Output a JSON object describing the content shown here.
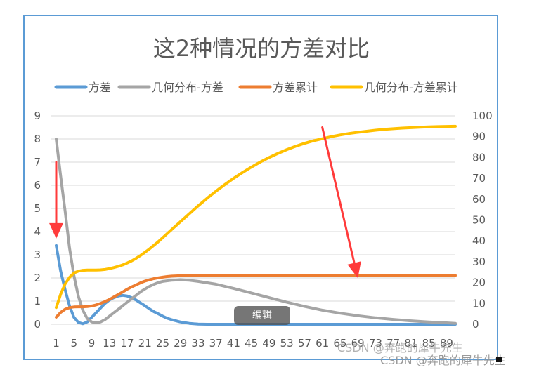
{
  "chart_data": {
    "type": "line",
    "title": "这2种情况的方差对比",
    "x_start": 1,
    "x_end": 91,
    "x_ticks": [
      1,
      5,
      9,
      13,
      17,
      21,
      25,
      29,
      33,
      37,
      41,
      45,
      49,
      53,
      57,
      61,
      65,
      69,
      73,
      77,
      81,
      85,
      89
    ],
    "y_left": {
      "min": 0,
      "max": 9,
      "ticks": [
        0,
        1,
        2,
        3,
        4,
        5,
        6,
        7,
        8,
        9
      ]
    },
    "y_right": {
      "min": 0,
      "max": 100,
      "ticks": [
        0,
        10,
        20,
        30,
        40,
        50,
        60,
        70,
        80,
        90,
        100
      ]
    },
    "grid": true,
    "legend_position": "top",
    "series": [
      {
        "name": "方差",
        "color": "#5b9bd5",
        "axis": "left",
        "points": [
          [
            1,
            3.4
          ],
          [
            2,
            2.3
          ],
          [
            3,
            1.5
          ],
          [
            4,
            0.8
          ],
          [
            5,
            0.3
          ],
          [
            6,
            0.08
          ],
          [
            7,
            0.02
          ],
          [
            8,
            0.1
          ],
          [
            9,
            0.3
          ],
          [
            10,
            0.5
          ],
          [
            11,
            0.7
          ],
          [
            12,
            0.9
          ],
          [
            13,
            1.05
          ],
          [
            14,
            1.15
          ],
          [
            15,
            1.22
          ],
          [
            16,
            1.25
          ],
          [
            17,
            1.22
          ],
          [
            18,
            1.15
          ],
          [
            19,
            1.05
          ],
          [
            20,
            0.92
          ],
          [
            21,
            0.8
          ],
          [
            22,
            0.67
          ],
          [
            23,
            0.55
          ],
          [
            24,
            0.45
          ],
          [
            25,
            0.35
          ],
          [
            26,
            0.26
          ],
          [
            27,
            0.2
          ],
          [
            28,
            0.15
          ],
          [
            29,
            0.1
          ],
          [
            30,
            0.07
          ],
          [
            31,
            0.04
          ],
          [
            32,
            0.02
          ],
          [
            33,
            0.01
          ],
          [
            35,
            0
          ],
          [
            91,
            0
          ]
        ]
      },
      {
        "name": "几何分布-方差",
        "color": "#a5a5a5",
        "axis": "left",
        "points": [
          [
            1,
            8.0
          ],
          [
            2,
            6.4
          ],
          [
            3,
            4.9
          ],
          [
            4,
            3.3
          ],
          [
            5,
            2.1
          ],
          [
            6,
            1.2
          ],
          [
            7,
            0.6
          ],
          [
            8,
            0.25
          ],
          [
            9,
            0.1
          ],
          [
            10,
            0.06
          ],
          [
            11,
            0.1
          ],
          [
            12,
            0.2
          ],
          [
            13,
            0.35
          ],
          [
            14,
            0.5
          ],
          [
            15,
            0.65
          ],
          [
            16,
            0.8
          ],
          [
            17,
            0.95
          ],
          [
            18,
            1.1
          ],
          [
            19,
            1.25
          ],
          [
            20,
            1.4
          ],
          [
            21,
            1.52
          ],
          [
            22,
            1.63
          ],
          [
            23,
            1.72
          ],
          [
            24,
            1.8
          ],
          [
            25,
            1.85
          ],
          [
            27,
            1.9
          ],
          [
            29,
            1.92
          ],
          [
            31,
            1.9
          ],
          [
            33,
            1.85
          ],
          [
            37,
            1.73
          ],
          [
            41,
            1.55
          ],
          [
            45,
            1.35
          ],
          [
            49,
            1.15
          ],
          [
            53,
            0.95
          ],
          [
            57,
            0.77
          ],
          [
            61,
            0.61
          ],
          [
            65,
            0.48
          ],
          [
            69,
            0.37
          ],
          [
            73,
            0.28
          ],
          [
            77,
            0.21
          ],
          [
            81,
            0.15
          ],
          [
            85,
            0.1
          ],
          [
            89,
            0.06
          ],
          [
            91,
            0.04
          ]
        ]
      },
      {
        "name": "方差累计",
        "color": "#ed7d31",
        "axis": "right",
        "points": [
          [
            1,
            3.4
          ],
          [
            2,
            5.7
          ],
          [
            3,
            7.2
          ],
          [
            4,
            8.0
          ],
          [
            5,
            8.3
          ],
          [
            6,
            8.4
          ],
          [
            7,
            8.4
          ],
          [
            8,
            8.5
          ],
          [
            9,
            8.8
          ],
          [
            10,
            9.3
          ],
          [
            11,
            10.0
          ],
          [
            12,
            10.9
          ],
          [
            13,
            11.9
          ],
          [
            14,
            13.1
          ],
          [
            15,
            14.3
          ],
          [
            16,
            15.5
          ],
          [
            17,
            16.8
          ],
          [
            18,
            17.9
          ],
          [
            19,
            18.9
          ],
          [
            20,
            19.9
          ],
          [
            21,
            20.7
          ],
          [
            22,
            21.3
          ],
          [
            23,
            21.9
          ],
          [
            24,
            22.3
          ],
          [
            25,
            22.6
          ],
          [
            26,
            22.9
          ],
          [
            27,
            23.1
          ],
          [
            28,
            23.2
          ],
          [
            29,
            23.3
          ],
          [
            30,
            23.3
          ],
          [
            32,
            23.4
          ],
          [
            91,
            23.4
          ]
        ]
      },
      {
        "name": "几何分布-方差累计",
        "color": "#ffc000",
        "axis": "right",
        "points": [
          [
            1,
            8.0
          ],
          [
            2,
            14.4
          ],
          [
            3,
            19.3
          ],
          [
            4,
            22.5
          ],
          [
            5,
            24.6
          ],
          [
            6,
            25.5
          ],
          [
            7,
            25.9
          ],
          [
            8,
            26.0
          ],
          [
            9,
            26.0
          ],
          [
            10,
            26.0
          ],
          [
            11,
            26.1
          ],
          [
            12,
            26.3
          ],
          [
            13,
            26.7
          ],
          [
            14,
            27.2
          ],
          [
            15,
            27.8
          ],
          [
            16,
            28.5
          ],
          [
            17,
            29.4
          ],
          [
            18,
            30.4
          ],
          [
            19,
            31.6
          ],
          [
            20,
            33.0
          ],
          [
            21,
            34.5
          ],
          [
            22,
            36.1
          ],
          [
            23,
            37.8
          ],
          [
            24,
            39.6
          ],
          [
            25,
            41.5
          ],
          [
            27,
            45.4
          ],
          [
            29,
            49.2
          ],
          [
            31,
            53.0
          ],
          [
            33,
            56.8
          ],
          [
            35,
            60.4
          ],
          [
            37,
            63.8
          ],
          [
            39,
            67.0
          ],
          [
            41,
            70.0
          ],
          [
            43,
            72.8
          ],
          [
            45,
            75.4
          ],
          [
            47,
            77.8
          ],
          [
            49,
            80.0
          ],
          [
            51,
            82.0
          ],
          [
            53,
            83.8
          ],
          [
            55,
            85.4
          ],
          [
            57,
            86.8
          ],
          [
            59,
            88.0
          ],
          [
            61,
            89.0
          ],
          [
            63,
            90.0
          ],
          [
            65,
            90.8
          ],
          [
            67,
            91.5
          ],
          [
            69,
            92.1
          ],
          [
            71,
            92.6
          ],
          [
            73,
            93.1
          ],
          [
            75,
            93.5
          ],
          [
            77,
            93.8
          ],
          [
            79,
            94.1
          ],
          [
            81,
            94.3
          ],
          [
            83,
            94.5
          ],
          [
            85,
            94.7
          ],
          [
            87,
            94.8
          ],
          [
            89,
            94.9
          ],
          [
            91,
            95.0
          ]
        ]
      }
    ],
    "annotations": [
      {
        "type": "arrow",
        "color": "#ff3b3b",
        "from": [
          1,
          7.0
        ],
        "to": [
          1,
          3.7
        ],
        "axis": "left"
      },
      {
        "type": "arrow",
        "color": "#ff3b3b",
        "from": [
          61,
          8.5
        ],
        "to": [
          69,
          2.0
        ],
        "axis": "left"
      }
    ]
  },
  "overlay": {
    "edit_label": "编辑",
    "watermark_1": "CSDN @奔跑的犀牛先生",
    "watermark_2": "CSDN @奔跑的犀牛先生"
  }
}
